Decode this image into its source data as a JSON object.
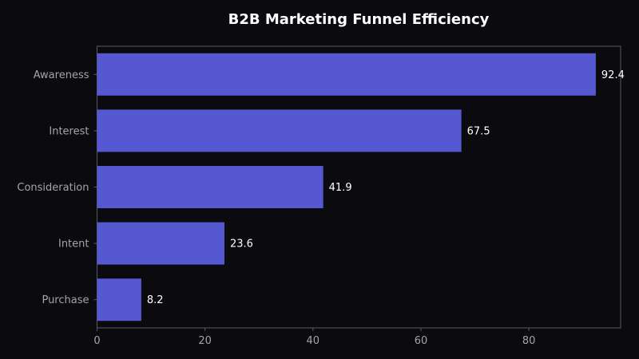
{
  "chart_data": {
    "type": "bar",
    "orientation": "horizontal",
    "title": "B2B Marketing Funnel Efficiency",
    "xlabel": "",
    "ylabel": "",
    "categories": [
      "Awareness",
      "Interest",
      "Consideration",
      "Intent",
      "Purchase"
    ],
    "values": [
      92.4,
      67.5,
      41.9,
      23.6,
      8.2
    ],
    "value_labels": [
      "92.4",
      "67.5",
      "41.9",
      "23.6",
      "8.2"
    ],
    "xlim": [
      0,
      97
    ],
    "xticks": [
      0,
      20,
      40,
      60,
      80
    ],
    "xtick_labels": [
      "0",
      "20",
      "40",
      "60",
      "80"
    ],
    "grid": false,
    "colors": {
      "background": "#0b0a0e",
      "bar": "#5658d2",
      "axis": "#5a5a62",
      "tick_text": "#a4a4ae",
      "label_text": "#ffffff",
      "title_text": "#ffffff"
    }
  }
}
